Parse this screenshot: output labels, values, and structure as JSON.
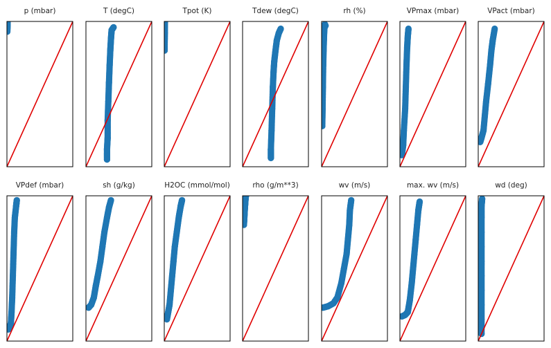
{
  "figure": {
    "title": "",
    "rows": 2,
    "cols": 7,
    "marker_color": "#1f77b4",
    "reference_line_color": "#e00000",
    "frame_color": "#000000",
    "background": "#ffffff"
  },
  "chart_data": [
    {
      "type": "scatter",
      "title": "p (mbar)",
      "xlabel": "",
      "ylabel": "",
      "x_range": [
        0,
        1
      ],
      "y_range": [
        0,
        1
      ],
      "reference_line": [
        [
          0,
          0
        ],
        [
          1,
          1
        ]
      ],
      "series": [
        {
          "name": "",
          "x": [
            0.005,
            0.006,
            0.007,
            0.008,
            0.008
          ],
          "y": [
            0.93,
            0.95,
            0.97,
            0.99,
            1.0
          ]
        }
      ]
    },
    {
      "type": "scatter",
      "title": "T (degC)",
      "xlabel": "",
      "ylabel": "",
      "x_range": [
        0,
        1
      ],
      "y_range": [
        0,
        1
      ],
      "reference_line": [
        [
          0,
          0
        ],
        [
          1,
          1
        ]
      ],
      "series": [
        {
          "name": "",
          "x": [
            0.32,
            0.32,
            0.33,
            0.33,
            0.34,
            0.35,
            0.36,
            0.37,
            0.38,
            0.39,
            0.42
          ],
          "y": [
            0.05,
            0.12,
            0.2,
            0.32,
            0.45,
            0.58,
            0.7,
            0.8,
            0.88,
            0.94,
            0.96
          ]
        }
      ]
    },
    {
      "type": "scatter",
      "title": "Tpot (K)",
      "xlabel": "",
      "ylabel": "",
      "x_range": [
        0,
        1
      ],
      "y_range": [
        0,
        1
      ],
      "reference_line": [
        [
          0,
          0
        ],
        [
          1,
          1
        ]
      ],
      "series": [
        {
          "name": "",
          "x": [
            0.005,
            0.005,
            0.006,
            0.007,
            0.007,
            0.008
          ],
          "y": [
            0.8,
            0.84,
            0.88,
            0.92,
            0.96,
            1.0
          ]
        }
      ]
    },
    {
      "type": "scatter",
      "title": "Tdew (degC)",
      "xlabel": "",
      "ylabel": "",
      "x_range": [
        0,
        1
      ],
      "y_range": [
        0,
        1
      ],
      "reference_line": [
        [
          0,
          0
        ],
        [
          1,
          1
        ]
      ],
      "series": [
        {
          "name": "",
          "x": [
            0.43,
            0.43,
            0.44,
            0.45,
            0.46,
            0.47,
            0.48,
            0.5,
            0.52,
            0.55,
            0.58
          ],
          "y": [
            0.06,
            0.12,
            0.25,
            0.4,
            0.55,
            0.65,
            0.72,
            0.8,
            0.87,
            0.92,
            0.95
          ]
        }
      ]
    },
    {
      "type": "scatter",
      "title": "rh (%)",
      "xlabel": "",
      "ylabel": "",
      "x_range": [
        0,
        1
      ],
      "y_range": [
        0,
        1
      ],
      "reference_line": [
        [
          0,
          0
        ],
        [
          1,
          1
        ]
      ],
      "series": [
        {
          "name": "",
          "x": [
            0.01,
            0.015,
            0.02,
            0.025,
            0.03,
            0.035,
            0.04,
            0.05,
            0.06
          ],
          "y": [
            0.28,
            0.4,
            0.55,
            0.7,
            0.8,
            0.88,
            0.94,
            0.98,
            0.97
          ]
        }
      ]
    },
    {
      "type": "scatter",
      "title": "VPmax (mbar)",
      "xlabel": "",
      "ylabel": "",
      "x_range": [
        0,
        1
      ],
      "y_range": [
        0,
        1
      ],
      "reference_line": [
        [
          0,
          0
        ],
        [
          1,
          1
        ]
      ],
      "series": [
        {
          "name": "",
          "x": [
            0.03,
            0.05,
            0.06,
            0.08,
            0.09,
            0.1,
            0.11,
            0.12,
            0.13
          ],
          "y": [
            0.08,
            0.15,
            0.25,
            0.4,
            0.55,
            0.7,
            0.82,
            0.9,
            0.95
          ]
        }
      ]
    },
    {
      "type": "scatter",
      "title": "VPact (mbar)",
      "xlabel": "",
      "ylabel": "",
      "x_range": [
        0,
        1
      ],
      "y_range": [
        0,
        1
      ],
      "reference_line": [
        [
          0,
          0
        ],
        [
          1,
          1
        ]
      ],
      "series": [
        {
          "name": "",
          "x": [
            0.03,
            0.05,
            0.08,
            0.1,
            0.12,
            0.15,
            0.18,
            0.2,
            0.22,
            0.25
          ],
          "y": [
            0.17,
            0.2,
            0.25,
            0.35,
            0.45,
            0.57,
            0.7,
            0.8,
            0.87,
            0.95
          ]
        }
      ]
    },
    {
      "type": "scatter",
      "title": "VPdef (mbar)",
      "xlabel": "",
      "ylabel": "",
      "x_range": [
        0,
        1
      ],
      "y_range": [
        0,
        1
      ],
      "reference_line": [
        [
          0,
          0
        ],
        [
          1,
          1
        ]
      ],
      "series": [
        {
          "name": "",
          "x": [
            0.02,
            0.04,
            0.06,
            0.07,
            0.08,
            0.09,
            0.1,
            0.11,
            0.12,
            0.14,
            0.15
          ],
          "y": [
            0.08,
            0.1,
            0.12,
            0.2,
            0.3,
            0.45,
            0.6,
            0.75,
            0.85,
            0.93,
            0.97
          ]
        }
      ]
    },
    {
      "type": "scatter",
      "title": "sh (g/kg)",
      "xlabel": "",
      "ylabel": "",
      "x_range": [
        0,
        1
      ],
      "y_range": [
        0,
        1
      ],
      "reference_line": [
        [
          0,
          0
        ],
        [
          1,
          1
        ]
      ],
      "series": [
        {
          "name": "",
          "x": [
            0.04,
            0.08,
            0.12,
            0.15,
            0.18,
            0.22,
            0.25,
            0.28,
            0.32,
            0.35,
            0.38
          ],
          "y": [
            0.23,
            0.25,
            0.3,
            0.38,
            0.45,
            0.55,
            0.65,
            0.75,
            0.85,
            0.92,
            0.97
          ]
        }
      ]
    },
    {
      "type": "scatter",
      "title": "H2OC (mmol/mol)",
      "xlabel": "",
      "ylabel": "",
      "x_range": [
        0,
        1
      ],
      "y_range": [
        0,
        1
      ],
      "reference_line": [
        [
          0,
          0
        ],
        [
          1,
          1
        ]
      ],
      "series": [
        {
          "name": "",
          "x": [
            0.04,
            0.06,
            0.08,
            0.1,
            0.12,
            0.14,
            0.16,
            0.19,
            0.22,
            0.25,
            0.27
          ],
          "y": [
            0.15,
            0.2,
            0.25,
            0.35,
            0.45,
            0.55,
            0.65,
            0.75,
            0.85,
            0.93,
            0.97
          ]
        }
      ]
    },
    {
      "type": "scatter",
      "title": "rho (g/m**3)",
      "xlabel": "",
      "ylabel": "",
      "x_range": [
        0,
        1
      ],
      "y_range": [
        0,
        1
      ],
      "reference_line": [
        [
          0,
          0
        ],
        [
          1,
          1
        ]
      ],
      "series": [
        {
          "name": "",
          "x": [
            0.02,
            0.025,
            0.03,
            0.035,
            0.04,
            0.045,
            0.05
          ],
          "y": [
            0.8,
            0.84,
            0.88,
            0.92,
            0.95,
            0.98,
            1.0
          ]
        }
      ]
    },
    {
      "type": "scatter",
      "title": "wv (m/s)",
      "xlabel": "",
      "ylabel": "",
      "x_range": [
        0,
        1
      ],
      "y_range": [
        0,
        1
      ],
      "reference_line": [
        [
          0,
          0
        ],
        [
          1,
          1
        ]
      ],
      "series": [
        {
          "name": "",
          "x": [
            0.02,
            0.1,
            0.18,
            0.24,
            0.3,
            0.34,
            0.38,
            0.4,
            0.42,
            0.43,
            0.45
          ],
          "y": [
            0.23,
            0.24,
            0.26,
            0.3,
            0.4,
            0.5,
            0.6,
            0.7,
            0.8,
            0.9,
            0.97
          ]
        }
      ]
    },
    {
      "type": "scatter",
      "title": "max. wv (m/s)",
      "xlabel": "",
      "ylabel": "",
      "x_range": [
        0,
        1
      ],
      "y_range": [
        0,
        1
      ],
      "reference_line": [
        [
          0,
          0
        ],
        [
          1,
          1
        ]
      ],
      "series": [
        {
          "name": "",
          "x": [
            0.03,
            0.08,
            0.12,
            0.15,
            0.18,
            0.2,
            0.22,
            0.24,
            0.26,
            0.28,
            0.3
          ],
          "y": [
            0.17,
            0.18,
            0.2,
            0.28,
            0.4,
            0.5,
            0.6,
            0.7,
            0.8,
            0.9,
            0.96
          ]
        }
      ]
    },
    {
      "type": "scatter",
      "title": "wd (deg)",
      "xlabel": "",
      "ylabel": "",
      "x_range": [
        0,
        1
      ],
      "y_range": [
        0,
        1
      ],
      "reference_line": [
        [
          0,
          0
        ],
        [
          1,
          1
        ]
      ],
      "series": [
        {
          "name": "",
          "x": [
            0.05,
            0.05,
            0.05,
            0.05,
            0.05,
            0.05,
            0.05,
            0.05,
            0.05,
            0.05,
            0.06
          ],
          "y": [
            0.05,
            0.15,
            0.25,
            0.35,
            0.45,
            0.55,
            0.65,
            0.75,
            0.85,
            0.93,
            0.98
          ]
        }
      ]
    }
  ]
}
